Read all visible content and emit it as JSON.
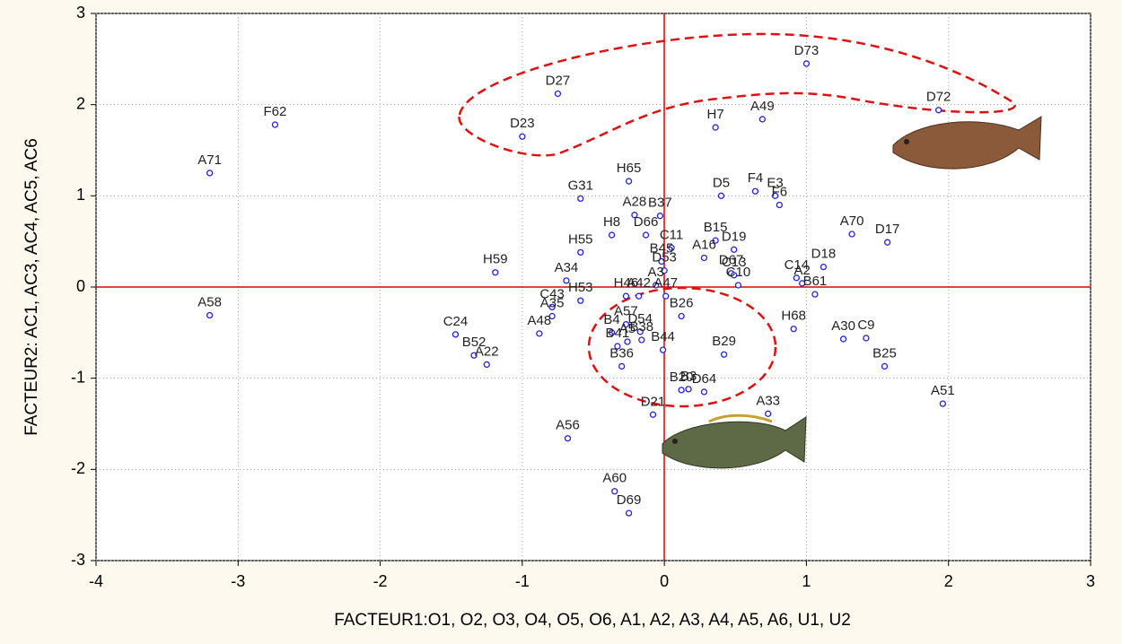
{
  "chart_data": {
    "type": "scatter",
    "x_label": "FACTEUR1:O1, O2, O3, O4, O5, O6, A1, A2, A3, A4, A5, A6, U1, U2",
    "y_label": "FACTEUR2: AC1, AC3, AC4, AC5, AC6",
    "xlim": [
      -4,
      3
    ],
    "xticks": [
      -4,
      -3,
      -2,
      -1,
      0,
      1,
      2,
      3
    ],
    "ylim": [
      -3,
      3
    ],
    "yticks": [
      -3,
      -2,
      -1,
      0,
      1,
      2,
      3
    ],
    "grid": true,
    "color": "#2323e0",
    "point_labels": [
      "F62",
      "A71",
      "A58",
      "H59",
      "D27",
      "D23",
      "G31",
      "H65",
      "A28",
      "B37",
      "D66",
      "H8",
      "C11",
      "H55",
      "A34",
      "H53",
      "B45",
      "D53",
      "A3",
      "H46",
      "A42",
      "A47",
      "B26",
      "D5",
      "F4",
      "E3",
      "F6",
      "B15",
      "D19",
      "A16",
      "D67",
      "C13",
      "C10",
      "H7",
      "A49",
      "D73",
      "D72",
      "A70",
      "D17",
      "D18",
      "C14",
      "A2",
      "B61",
      "H68",
      "A30",
      "C9",
      "B25",
      "A51",
      "B29",
      "A33",
      "B20",
      "B3",
      "D64",
      "D21",
      "A56",
      "A60",
      "D69",
      "C24",
      "B52",
      "A22",
      "C43",
      "A35",
      "A48",
      "B4",
      "A57",
      "D54",
      "A5",
      "B38",
      "B44",
      "B41",
      "B36"
    ],
    "x": [
      -2.74,
      -3.2,
      -3.2,
      -1.19,
      -0.75,
      -1.0,
      -0.59,
      -0.25,
      -0.21,
      -0.03,
      -0.13,
      -0.37,
      0.05,
      -0.59,
      -0.69,
      -0.59,
      -0.02,
      0.0,
      -0.06,
      -0.27,
      -0.18,
      0.01,
      0.12,
      0.4,
      0.64,
      0.78,
      0.81,
      0.36,
      0.49,
      0.28,
      0.47,
      0.49,
      0.52,
      0.36,
      0.69,
      1.0,
      1.93,
      1.32,
      1.57,
      1.12,
      0.93,
      0.97,
      1.06,
      0.91,
      1.26,
      1.42,
      1.55,
      1.96,
      0.42,
      0.73,
      0.12,
      0.17,
      0.28,
      -0.08,
      -0.68,
      -0.35,
      -0.25,
      -1.47,
      -1.34,
      -1.25,
      -0.79,
      -0.79,
      -0.88,
      -0.37,
      -0.27,
      -0.17,
      -0.26,
      -0.16,
      -0.01,
      -0.33,
      -0.3
    ],
    "values": [
      1.78,
      1.25,
      -0.31,
      0.16,
      2.12,
      1.65,
      0.97,
      1.16,
      0.79,
      0.78,
      0.57,
      0.57,
      0.43,
      0.38,
      0.07,
      -0.15,
      0.28,
      0.18,
      0.02,
      -0.1,
      -0.1,
      -0.1,
      -0.32,
      1.0,
      1.05,
      1.0,
      0.9,
      0.51,
      0.41,
      0.32,
      0.15,
      0.13,
      0.02,
      1.75,
      1.84,
      2.45,
      1.94,
      0.58,
      0.49,
      0.22,
      0.1,
      0.04,
      -0.08,
      -0.46,
      -0.57,
      -0.56,
      -0.87,
      -1.28,
      -0.74,
      -1.39,
      -1.13,
      -1.12,
      -1.15,
      -1.4,
      -1.66,
      -2.24,
      -2.48,
      -0.52,
      -0.75,
      -0.85,
      -0.22,
      -0.32,
      -0.51,
      -0.5,
      -0.41,
      -0.49,
      -0.6,
      -0.58,
      -0.69,
      -0.65,
      -0.87
    ]
  }
}
